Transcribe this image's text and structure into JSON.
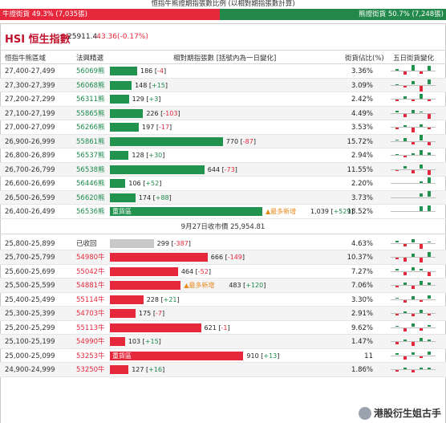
{
  "header": {
    "top_title": "恒指牛熊證期指張數比例 (以相對期指張數計算)",
    "bull_label": "牛證街貨",
    "bull_pct": "49.3% (7,035張)",
    "bear_label": "熊證街貨",
    "bear_pct": "50.7% (7,248張)",
    "bull_share": 0.493
  },
  "index": {
    "title_en": "HSI",
    "title_zh": "恒生指數",
    "price": "25911.4",
    "change": "-43.36(-0.17%)"
  },
  "columns": {
    "range": "恒指牛熊區域",
    "code": "法興精選",
    "qty": "相對期指張數 [括號內為一日變化]",
    "pct": "街貨佔比(%)",
    "five_day": "五日街貨變化"
  },
  "divider_text": "9月27日收市價 25,954.81",
  "max_qty": 1039,
  "bear_rows": [
    {
      "range": "27,400-27,499",
      "code": "56069熊",
      "qty": 186,
      "qty_text": "186",
      "chg": "-4",
      "pct": "3.36%",
      "spark": [
        0.2,
        -0.5,
        0.9,
        -0.4,
        0.7
      ]
    },
    {
      "range": "27,300-27,399",
      "code": "56068熊",
      "qty": 148,
      "qty_text": "148",
      "chg": "+15",
      "pct": "3.09%",
      "spark": [
        0.1,
        -0.3,
        0.6,
        -0.9,
        0.8
      ]
    },
    {
      "range": "27,200-27,299",
      "code": "56311熊",
      "qty": 129,
      "qty_text": "129",
      "chg": "+3",
      "pct": "2.42%",
      "spark": [
        -0.3,
        0.4,
        -0.2,
        0.7,
        -0.3
      ]
    },
    {
      "range": "27,100-27,199",
      "code": "55865熊",
      "qty": 226,
      "qty_text": "226",
      "chg": "-103",
      "pct": "4.49%",
      "spark": [
        0.3,
        -0.6,
        0.5,
        0.2,
        -0.8
      ]
    },
    {
      "range": "27,000-27,099",
      "code": "56266熊",
      "qty": 197,
      "qty_text": "197",
      "chg": "-17",
      "pct": "3.53%",
      "spark": [
        -0.2,
        0.3,
        -0.7,
        0.4,
        -0.3
      ]
    },
    {
      "range": "26,900-26,999",
      "code": "55861熊",
      "qty": 770,
      "qty_text": "770",
      "chg": "-87",
      "pct": "15.72%",
      "spark": [
        0.2,
        0.5,
        -0.4,
        0.9,
        -0.6
      ]
    },
    {
      "range": "26,800-26,899",
      "code": "56537熊",
      "qty": 128,
      "qty_text": "128",
      "chg": "+30",
      "pct": "2.94%",
      "spark": [
        0.1,
        -0.2,
        0.3,
        0.8,
        0.4
      ]
    },
    {
      "range": "26,700-26,799",
      "code": "56538熊",
      "qty": 644,
      "qty_text": "644",
      "chg": "-73",
      "pct": "11.55%",
      "spark": [
        -0.2,
        0.4,
        -0.5,
        0.7,
        -0.8
      ]
    },
    {
      "range": "26,600-26,699",
      "code": "56446熊",
      "qty": 106,
      "qty_text": "106",
      "chg": "+52",
      "pct": "2.20%",
      "spark": [
        0.0,
        0.0,
        0.0,
        0.3,
        0.9
      ]
    },
    {
      "range": "26,500-26,599",
      "code": "56620熊",
      "qty": 174,
      "qty_text": "174",
      "chg": "+88",
      "pct": "3.73%",
      "spark": [
        0.0,
        0.0,
        0.0,
        0.6,
        0.9
      ]
    },
    {
      "range": "26,400-26,499",
      "code": "56536熊",
      "qty": 1039,
      "qty_text": "1,039",
      "chg": "+529",
      "pct": "18.52%",
      "label": "重貨區",
      "marker": "▲最多新增",
      "spark": [
        0.0,
        0.0,
        0.0,
        0.7,
        0.9
      ]
    }
  ],
  "bull_rows": [
    {
      "range": "25,800-25,899",
      "code": "已收回",
      "qty": 299,
      "qty_text": "299",
      "chg": "-387",
      "pct": "4.63%",
      "grey": true,
      "spark": [
        0.3,
        -0.4,
        0.6,
        -0.8,
        0.2
      ]
    },
    {
      "range": "25,700-25,799",
      "code": "54980牛",
      "qty": 666,
      "qty_text": "666",
      "chg": "-149",
      "pct": "10.37%",
      "spark": [
        -0.2,
        -0.6,
        0.5,
        -0.7,
        0.8
      ]
    },
    {
      "range": "25,600-25,699",
      "code": "55042牛",
      "qty": 464,
      "qty_text": "464",
      "chg": "-52",
      "pct": "7.27%",
      "spark": [
        0.3,
        -0.5,
        0.6,
        0.3,
        -0.7
      ]
    },
    {
      "range": "25,500-25,599",
      "code": "54881牛",
      "qty": 483,
      "qty_text": "483",
      "chg": "+120",
      "pct": "7.06%",
      "marker": "▲最多新增",
      "spark": [
        -0.3,
        0.4,
        -0.5,
        0.6,
        0.4
      ]
    },
    {
      "range": "25,400-25,499",
      "code": "55114牛",
      "qty": 228,
      "qty_text": "228",
      "chg": "+21",
      "pct": "3.30%",
      "spark": [
        0.2,
        -0.4,
        0.5,
        -0.3,
        0.6
      ]
    },
    {
      "range": "25,300-25,399",
      "code": "54703牛",
      "qty": 175,
      "qty_text": "175",
      "chg": "-7",
      "pct": "2.91%",
      "spark": [
        -0.3,
        0.3,
        -0.4,
        0.5,
        -0.2
      ]
    },
    {
      "range": "25,200-25,299",
      "code": "55113牛",
      "qty": 621,
      "qty_text": "621",
      "chg": "-1",
      "pct": "9.62%",
      "spark": [
        0.2,
        -0.5,
        0.6,
        -0.4,
        0.3
      ]
    },
    {
      "range": "25,100-25,199",
      "code": "54990牛",
      "qty": 103,
      "qty_text": "103",
      "chg": "+15",
      "pct": "1.47%",
      "spark": [
        -0.4,
        0.3,
        -0.6,
        0.5,
        0.2
      ]
    },
    {
      "range": "25,000-25,099",
      "code": "53253牛",
      "qty": 910,
      "qty_text": "910",
      "chg": "+13",
      "pct": "11",
      "label": "重貨區",
      "spark": [
        0.3,
        -0.5,
        0.4,
        -0.3,
        0.6
      ]
    },
    {
      "range": "24,900-24,999",
      "code": "53250牛",
      "qty": 127,
      "qty_text": "127",
      "chg": "+16",
      "pct": "1.86%",
      "spark": [
        -0.2,
        0.3,
        -0.4,
        0.3,
        0.2
      ]
    }
  ],
  "watermark": "港股衍生姐古手"
}
